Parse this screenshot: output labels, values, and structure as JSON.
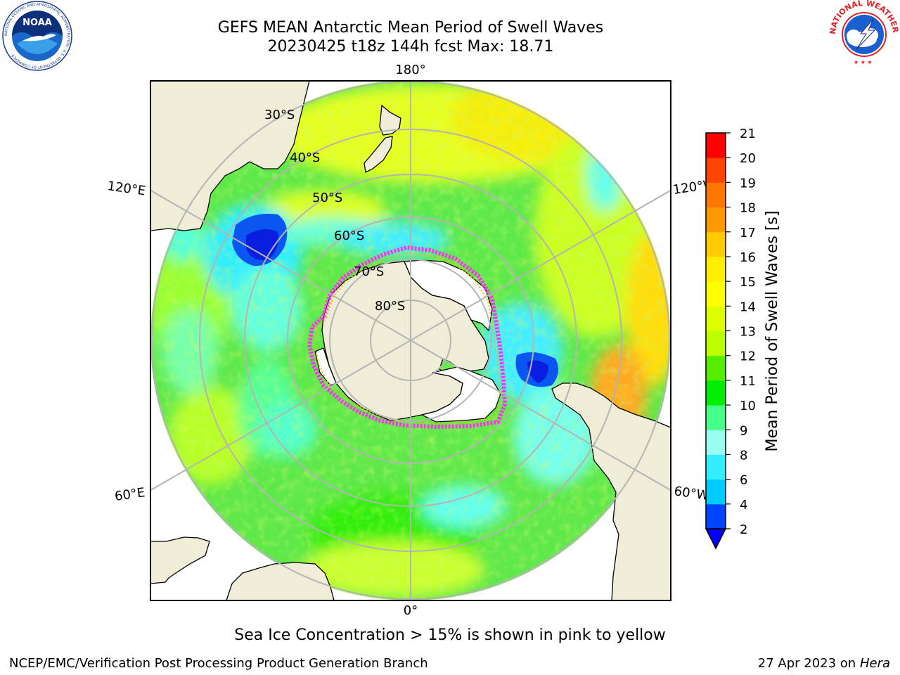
{
  "title": {
    "line1": "GEFS MEAN Antarctic Mean Period of Swell Waves",
    "line2": "20230425 t18z 144h fcst   Max: 18.71"
  },
  "map": {
    "longitude_labels": {
      "top": "180°",
      "left_upper": "120°E",
      "left_lower": "60°E",
      "right_upper": "120°W",
      "right_lower": "60°W",
      "bottom": "0°"
    },
    "latitude_labels": [
      "30°S",
      "40°S",
      "50°S",
      "60°S",
      "70°S",
      "80°S"
    ],
    "colors": {
      "land": "#efedd8",
      "ice_shelf": "#ffffff",
      "grid": "#b4b4b4",
      "sea_ice_edge": [
        "#ff33ee",
        "#ffb000"
      ]
    }
  },
  "colorbar": {
    "label": "Mean Period of Swell Waves [s]",
    "ticks": [
      "2",
      "4",
      "6",
      "8",
      "9",
      "10",
      "11",
      "12",
      "13",
      "14",
      "15",
      "16",
      "17",
      "18",
      "19",
      "20",
      "21"
    ],
    "colors": [
      "#0044ff",
      "#00ccff",
      "#33eeff",
      "#99ffee",
      "#44ff88",
      "#00ee00",
      "#55ee00",
      "#bbff00",
      "#ddff00",
      "#ffff00",
      "#ffee00",
      "#ffcc00",
      "#ff9900",
      "#ff7700",
      "#ff4400",
      "#ff0000"
    ],
    "extend_color": "#0000ff"
  },
  "caption": "Sea Ice Concentration > 15% is shown in pink to yellow",
  "credit": "NCEP/EMC/Verification Post Processing Product Generation Branch",
  "date": {
    "text": "27 Apr 2023 on ",
    "host": "Hera"
  },
  "logos": {
    "left": {
      "text": "NOAA",
      "ring_text": "NATIONAL OCEANIC AND ATMOSPHERIC ADMINISTRATION · U.S. DEPARTMENT OF COMMERCE"
    },
    "right": {
      "ring_text": "NATIONAL WEATHER SERVICE"
    }
  }
}
